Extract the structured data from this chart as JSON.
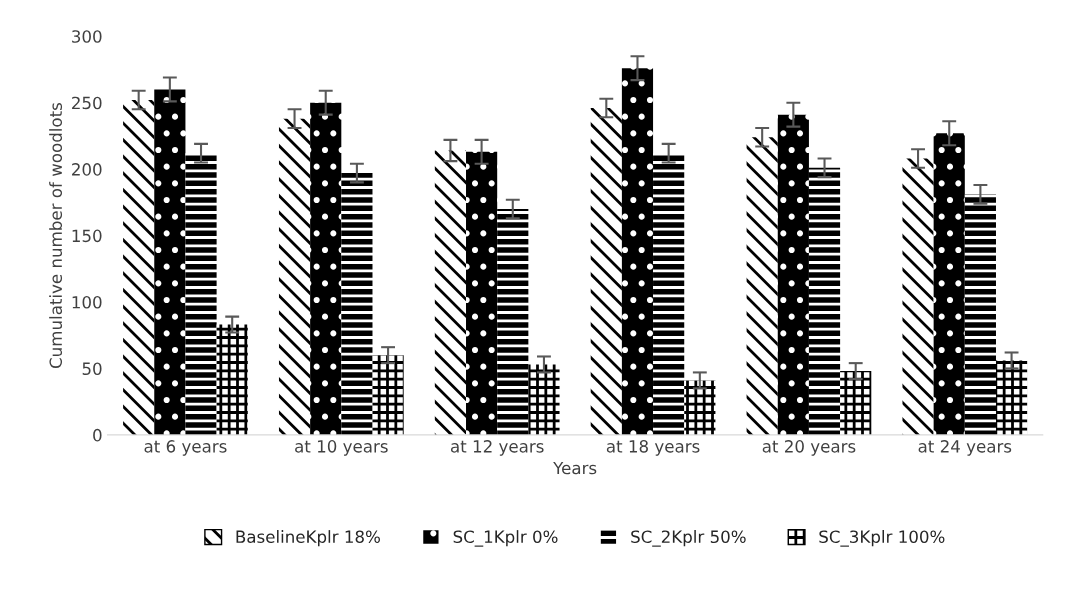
{
  "chart_data": {
    "type": "bar",
    "xlabel": "Years",
    "ylabel": "Cumulative number of woodlots",
    "categories": [
      "at 6 years",
      "at 10 years",
      "at 12 years",
      "at 18 years",
      "at 20 years",
      "at 24 years"
    ],
    "series": [
      {
        "name": "BaselineKplr 18%",
        "color": "#000000",
        "values": [
          252,
          238,
          214,
          246,
          224,
          208
        ],
        "errors": [
          7,
          7,
          8,
          7,
          7,
          7
        ]
      },
      {
        "name": "SC_1Kplr 0%",
        "color": "#000000",
        "values": [
          260,
          250,
          213,
          276,
          241,
          227
        ],
        "errors": [
          9,
          9,
          9,
          9,
          9,
          9
        ]
      },
      {
        "name": "SC_2Kplr 50%",
        "color": "#000000",
        "values": [
          212,
          197,
          170,
          212,
          201,
          181
        ],
        "errors": [
          7,
          7,
          7,
          7,
          7,
          7
        ]
      },
      {
        "name": "SC_3Kplr 100%",
        "color": "#000000",
        "values": [
          83,
          60,
          53,
          41,
          48,
          56
        ],
        "errors": [
          6,
          6,
          6,
          6,
          6,
          6
        ]
      }
    ],
    "ylim": [
      0,
      300
    ],
    "yticks": [
      0,
      50,
      100,
      150,
      200,
      250,
      300
    ],
    "grid": false,
    "legend": "bottom"
  }
}
